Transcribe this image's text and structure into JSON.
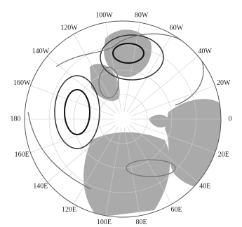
{
  "map": {
    "longitude_labels": [
      "100W",
      "120W",
      "140W",
      "160W",
      "180",
      "160E",
      "140E",
      "120E",
      "100E",
      "80E",
      "60E",
      "40E",
      "20E",
      "0",
      "20W",
      "40W",
      "60W",
      "80W"
    ]
  }
}
